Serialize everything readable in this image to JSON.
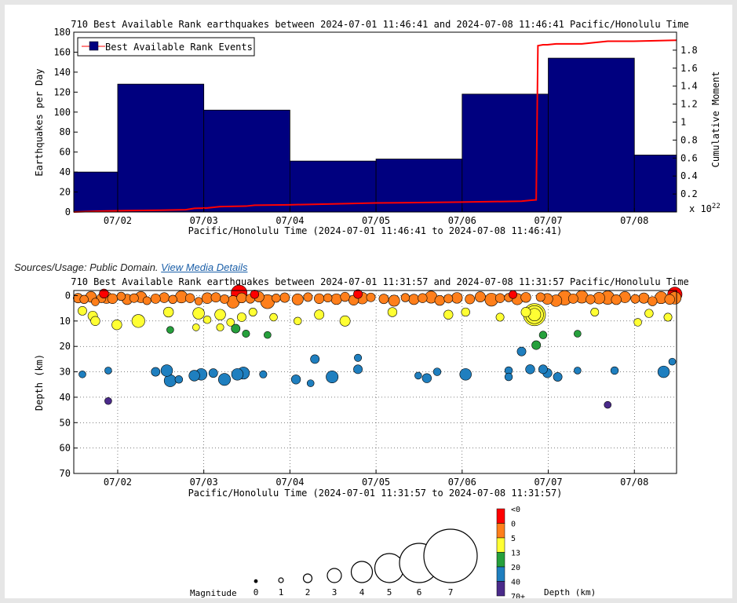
{
  "sources": {
    "label": "Sources/Usage: Public Domain.",
    "link_text": "View Media Details"
  },
  "colors": {
    "bar": "#00007f",
    "cumulative_line": "#ff0000",
    "depth_scale": [
      "#ff0000",
      "#ff7f1b",
      "#ffff33",
      "#26a03c",
      "#1f7fbf",
      "#4a2a8a",
      "#6b3fa0"
    ]
  },
  "chart_data": [
    {
      "type": "bar",
      "title": "710 Best Available Rank earthquakes between 2024-07-01 11:46:41 and 2024-07-08 11:46:41 Pacific/Honolulu Time",
      "xlabel": "Pacific/Honolulu Time (2024-07-01 11:46:41 to 2024-07-08 11:46:41)",
      "ylabel": "Earthquakes per Day",
      "y2label": "Cumulative Moment",
      "y2_multiplier": "x 10",
      "y2_exponent": "22",
      "legend": {
        "placement": "top-left",
        "entries": [
          "Best Available Rank Events"
        ]
      },
      "xlim": [
        0,
        7
      ],
      "xticks": [
        {
          "x": 0.51,
          "label": "07/02"
        },
        {
          "x": 1.51,
          "label": "07/03"
        },
        {
          "x": 2.51,
          "label": "07/04"
        },
        {
          "x": 3.51,
          "label": "07/05"
        },
        {
          "x": 4.51,
          "label": "07/06"
        },
        {
          "x": 5.51,
          "label": "07/07"
        },
        {
          "x": 6.51,
          "label": "07/08"
        }
      ],
      "ylim": [
        0,
        180
      ],
      "yticks": [
        0,
        20,
        40,
        60,
        80,
        100,
        120,
        140,
        160,
        180
      ],
      "y2lim": [
        0,
        2.0
      ],
      "y2ticks": [
        0.2,
        0.4,
        0.6,
        0.8,
        1,
        1.2,
        1.4,
        1.6,
        1.8
      ],
      "bars": [
        {
          "x0": 0.0,
          "x1": 0.51,
          "value": 40
        },
        {
          "x0": 0.51,
          "x1": 1.51,
          "value": 128
        },
        {
          "x0": 1.51,
          "x1": 2.51,
          "value": 102
        },
        {
          "x0": 2.51,
          "x1": 3.51,
          "value": 51
        },
        {
          "x0": 3.51,
          "x1": 4.51,
          "value": 53
        },
        {
          "x0": 4.51,
          "x1": 5.51,
          "value": 118
        },
        {
          "x0": 5.51,
          "x1": 6.51,
          "value": 154
        },
        {
          "x0": 6.51,
          "x1": 7.0,
          "value": 57
        }
      ],
      "cumulative_moment": {
        "x": [
          0,
          0.3,
          0.6,
          1.0,
          1.3,
          1.4,
          1.55,
          1.7,
          2.0,
          2.1,
          2.5,
          3.0,
          3.5,
          4.0,
          4.5,
          5.2,
          5.3,
          5.37,
          5.39,
          5.45,
          5.5,
          5.6,
          5.9,
          6.0,
          6.2,
          6.5,
          7.0
        ],
        "y": [
          0.0,
          0.01,
          0.015,
          0.02,
          0.025,
          0.04,
          0.045,
          0.06,
          0.065,
          0.075,
          0.08,
          0.09,
          0.1,
          0.105,
          0.11,
          0.12,
          0.13,
          0.135,
          1.85,
          1.86,
          1.86,
          1.87,
          1.87,
          1.88,
          1.9,
          1.9,
          1.91
        ]
      }
    },
    {
      "type": "scatter",
      "title": "710 Best Available Rank earthquakes between 2024-07-01 11:31:57 and 2024-07-08 11:31:57 Pacific/Honolulu Time",
      "xlabel": "Pacific/Honolulu Time (2024-07-01 11:31:57 to 2024-07-08 11:31:57)",
      "ylabel": "Depth (km)",
      "xlim": [
        0,
        7
      ],
      "xticks": [
        {
          "x": 0.51,
          "label": "07/02"
        },
        {
          "x": 1.51,
          "label": "07/03"
        },
        {
          "x": 2.51,
          "label": "07/04"
        },
        {
          "x": 3.51,
          "label": "07/05"
        },
        {
          "x": 4.51,
          "label": "07/06"
        },
        {
          "x": 5.51,
          "label": "07/07"
        },
        {
          "x": 6.51,
          "label": "07/08"
        }
      ],
      "ylim": [
        -2,
        70
      ],
      "yticks": [
        0,
        10,
        20,
        30,
        40,
        50,
        60,
        70
      ],
      "grid": true,
      "depth_classes": [
        "<0",
        "0",
        "5",
        "13",
        "20",
        "40",
        "70+"
      ],
      "depth_label": "Depth (km)",
      "magnitude_label": "Magnitude",
      "magnitude_legend": [
        "0",
        "1",
        "2",
        "3",
        "4",
        "5",
        "6",
        "7"
      ],
      "points": [
        {
          "x": 0.05,
          "d": 1,
          "m": 2.5
        },
        {
          "x": 0.12,
          "d": 1.5,
          "m": 2.2
        },
        {
          "x": 0.2,
          "d": 0.5,
          "m": 2.8
        },
        {
          "x": 0.25,
          "d": 2.5,
          "m": 2.0
        },
        {
          "x": 0.32,
          "d": 1,
          "m": 2.4
        },
        {
          "x": 0.38,
          "d": 0.8,
          "m": 3.0
        },
        {
          "x": 0.45,
          "d": 1.2,
          "m": 2.6
        },
        {
          "x": 0.55,
          "d": 0.3,
          "m": 2.2
        },
        {
          "x": 0.62,
          "d": 1.5,
          "m": 2.7
        },
        {
          "x": 0.7,
          "d": 1,
          "m": 2.3
        },
        {
          "x": 0.78,
          "d": 0.6,
          "m": 2.9
        },
        {
          "x": 0.85,
          "d": 2,
          "m": 2.1
        },
        {
          "x": 0.95,
          "d": 1.2,
          "m": 2.5
        },
        {
          "x": 1.05,
          "d": 0.8,
          "m": 2.6
        },
        {
          "x": 1.15,
          "d": 1.5,
          "m": 2.2
        },
        {
          "x": 1.25,
          "d": 0.5,
          "m": 3.1
        },
        {
          "x": 1.35,
          "d": 1,
          "m": 2.4
        },
        {
          "x": 1.45,
          "d": 2.2,
          "m": 2.0
        },
        {
          "x": 1.55,
          "d": 1,
          "m": 2.8
        },
        {
          "x": 1.65,
          "d": 0.7,
          "m": 2.5
        },
        {
          "x": 1.75,
          "d": 1.4,
          "m": 2.3
        },
        {
          "x": 1.85,
          "d": 2.5,
          "m": 3.2
        },
        {
          "x": 1.95,
          "d": 0.9,
          "m": 2.6
        },
        {
          "x": 2.05,
          "d": 1.2,
          "m": 2.4
        },
        {
          "x": 2.15,
          "d": 0.5,
          "m": 2.7
        },
        {
          "x": 2.25,
          "d": 2.4,
          "m": 3.5
        },
        {
          "x": 2.35,
          "d": 1,
          "m": 2.2
        },
        {
          "x": 2.45,
          "d": 0.8,
          "m": 2.5
        },
        {
          "x": 2.6,
          "d": 1.5,
          "m": 2.9
        },
        {
          "x": 2.72,
          "d": 0.6,
          "m": 2.3
        },
        {
          "x": 2.85,
          "d": 1.2,
          "m": 2.6
        },
        {
          "x": 2.95,
          "d": 0.9,
          "m": 2.2
        },
        {
          "x": 3.05,
          "d": 1.4,
          "m": 2.8
        },
        {
          "x": 3.15,
          "d": 0.5,
          "m": 2.4
        },
        {
          "x": 3.25,
          "d": 1.8,
          "m": 2.6
        },
        {
          "x": 3.35,
          "d": 1,
          "m": 3.0
        },
        {
          "x": 3.45,
          "d": 0.7,
          "m": 2.3
        },
        {
          "x": 3.6,
          "d": 1.3,
          "m": 2.5
        },
        {
          "x": 3.72,
          "d": 2,
          "m": 2.9
        },
        {
          "x": 3.85,
          "d": 0.8,
          "m": 2.2
        },
        {
          "x": 3.95,
          "d": 1.5,
          "m": 2.7
        },
        {
          "x": 4.05,
          "d": 1,
          "m": 2.4
        },
        {
          "x": 4.15,
          "d": 0.6,
          "m": 3.1
        },
        {
          "x": 4.25,
          "d": 1.9,
          "m": 2.6
        },
        {
          "x": 4.35,
          "d": 1.2,
          "m": 2.3
        },
        {
          "x": 4.45,
          "d": 0.9,
          "m": 2.8
        },
        {
          "x": 4.6,
          "d": 1.4,
          "m": 2.5
        },
        {
          "x": 4.72,
          "d": 0.5,
          "m": 2.7
        },
        {
          "x": 4.85,
          "d": 1.6,
          "m": 3.3
        },
        {
          "x": 4.95,
          "d": 1,
          "m": 2.4
        },
        {
          "x": 5.05,
          "d": 0.8,
          "m": 2.2
        },
        {
          "x": 5.15,
          "d": 1.4,
          "m": 2.9
        },
        {
          "x": 5.25,
          "d": 0.7,
          "m": 2.6
        },
        {
          "x": 5.42,
          "d": 0.6,
          "m": 2.3
        },
        {
          "x": 5.5,
          "d": 1.3,
          "m": 2.8
        },
        {
          "x": 5.6,
          "d": 2,
          "m": 3.0
        },
        {
          "x": 5.7,
          "d": 0.9,
          "m": 3.6
        },
        {
          "x": 5.8,
          "d": 1.2,
          "m": 2.5
        },
        {
          "x": 5.9,
          "d": 0.5,
          "m": 3.2
        },
        {
          "x": 6.0,
          "d": 1.5,
          "m": 2.4
        },
        {
          "x": 6.1,
          "d": 1,
          "m": 3.0
        },
        {
          "x": 6.2,
          "d": 0.8,
          "m": 3.4
        },
        {
          "x": 6.3,
          "d": 1.6,
          "m": 2.6
        },
        {
          "x": 6.4,
          "d": 0.6,
          "m": 2.9
        },
        {
          "x": 6.52,
          "d": 1.3,
          "m": 2.3
        },
        {
          "x": 6.62,
          "d": 1,
          "m": 2.7
        },
        {
          "x": 6.72,
          "d": 2.2,
          "m": 2.4
        },
        {
          "x": 6.82,
          "d": 0.8,
          "m": 3.1
        },
        {
          "x": 6.92,
          "d": 1.5,
          "m": 2.6
        },
        {
          "x": 6.98,
          "d": 0.9,
          "m": 3.2
        },
        {
          "x": 1.92,
          "d": -1,
          "m": 3.9
        },
        {
          "x": 6.98,
          "d": -0.5,
          "m": 3.6
        },
        {
          "x": 0.35,
          "d": -0.8,
          "m": 2.4
        },
        {
          "x": 2.1,
          "d": -0.5,
          "m": 2.2
        },
        {
          "x": 3.3,
          "d": -0.6,
          "m": 2.3
        },
        {
          "x": 5.1,
          "d": -0.4,
          "m": 2.1
        },
        {
          "x": 0.1,
          "d": 6,
          "m": 2.3
        },
        {
          "x": 0.22,
          "d": 8,
          "m": 2.5
        },
        {
          "x": 0.25,
          "d": 10,
          "m": 2.4
        },
        {
          "x": 0.5,
          "d": 11.5,
          "m": 2.6
        },
        {
          "x": 0.75,
          "d": 10,
          "m": 3.3
        },
        {
          "x": 1.1,
          "d": 6.5,
          "m": 2.6
        },
        {
          "x": 1.45,
          "d": 7,
          "m": 3.0
        },
        {
          "x": 1.55,
          "d": 9.5,
          "m": 2.0
        },
        {
          "x": 1.7,
          "d": 7.5,
          "m": 2.8
        },
        {
          "x": 1.82,
          "d": 10.5,
          "m": 2.0
        },
        {
          "x": 1.95,
          "d": 8.5,
          "m": 2.3
        },
        {
          "x": 2.08,
          "d": 6.5,
          "m": 2.1
        },
        {
          "x": 2.32,
          "d": 8.5,
          "m": 2.0
        },
        {
          "x": 2.6,
          "d": 10,
          "m": 2.0
        },
        {
          "x": 2.85,
          "d": 7.5,
          "m": 2.5
        },
        {
          "x": 3.15,
          "d": 10,
          "m": 2.7
        },
        {
          "x": 3.7,
          "d": 6.5,
          "m": 2.4
        },
        {
          "x": 4.35,
          "d": 7.5,
          "m": 2.4
        },
        {
          "x": 4.55,
          "d": 6.5,
          "m": 2.2
        },
        {
          "x": 4.95,
          "d": 8.5,
          "m": 2.1
        },
        {
          "x": 5.25,
          "d": 6.5,
          "m": 2.5
        },
        {
          "x": 5.35,
          "d": 7.5,
          "m": 5.0
        },
        {
          "x": 5.35,
          "d": 7.5,
          "m": 4.3
        },
        {
          "x": 5.35,
          "d": 7.5,
          "m": 3.2
        },
        {
          "x": 6.05,
          "d": 6.5,
          "m": 2.1
        },
        {
          "x": 6.68,
          "d": 7,
          "m": 2.2
        },
        {
          "x": 6.9,
          "d": 8.5,
          "m": 2.1
        },
        {
          "x": 6.55,
          "d": 10.5,
          "m": 2.0
        },
        {
          "x": 1.12,
          "d": 13.5,
          "m": 1.8
        },
        {
          "x": 1.42,
          "d": 12.5,
          "m": 1.8
        },
        {
          "x": 1.7,
          "d": 12.5,
          "m": 1.9
        },
        {
          "x": 1.88,
          "d": 13,
          "m": 2.3
        },
        {
          "x": 2.0,
          "d": 15,
          "m": 1.9
        },
        {
          "x": 2.25,
          "d": 15.5,
          "m": 1.8
        },
        {
          "x": 5.37,
          "d": 19.5,
          "m": 2.3
        },
        {
          "x": 0.1,
          "d": 31,
          "m": 1.8
        },
        {
          "x": 0.4,
          "d": 29.5,
          "m": 1.8
        },
        {
          "x": 0.95,
          "d": 30,
          "m": 2.3
        },
        {
          "x": 1.08,
          "d": 29.5,
          "m": 3.0
        },
        {
          "x": 1.12,
          "d": 33.5,
          "m": 3.1
        },
        {
          "x": 1.22,
          "d": 33,
          "m": 2.0
        },
        {
          "x": 1.4,
          "d": 31.5,
          "m": 2.8
        },
        {
          "x": 1.48,
          "d": 31,
          "m": 3.0
        },
        {
          "x": 1.62,
          "d": 30.5,
          "m": 2.3
        },
        {
          "x": 1.75,
          "d": 33,
          "m": 3.1
        },
        {
          "x": 1.9,
          "d": 31,
          "m": 3.0
        },
        {
          "x": 1.97,
          "d": 30.5,
          "m": 3.1
        },
        {
          "x": 2.2,
          "d": 31,
          "m": 1.9
        },
        {
          "x": 2.58,
          "d": 33,
          "m": 2.4
        },
        {
          "x": 2.75,
          "d": 34.5,
          "m": 1.8
        },
        {
          "x": 2.8,
          "d": 25,
          "m": 2.3
        },
        {
          "x": 3.0,
          "d": 32,
          "m": 3.1
        },
        {
          "x": 3.3,
          "d": 24.5,
          "m": 1.9
        },
        {
          "x": 3.3,
          "d": 29,
          "m": 2.3
        },
        {
          "x": 4.0,
          "d": 31.5,
          "m": 1.8
        },
        {
          "x": 4.1,
          "d": 32.5,
          "m": 2.4
        },
        {
          "x": 4.22,
          "d": 30,
          "m": 2.0
        },
        {
          "x": 4.55,
          "d": 31,
          "m": 3.0
        },
        {
          "x": 5.05,
          "d": 29.5,
          "m": 2.0
        },
        {
          "x": 5.05,
          "d": 32,
          "m": 2.0
        },
        {
          "x": 5.2,
          "d": 22,
          "m": 2.3
        },
        {
          "x": 5.3,
          "d": 29,
          "m": 2.4
        },
        {
          "x": 5.45,
          "d": 29,
          "m": 2.3
        },
        {
          "x": 5.5,
          "d": 30.5,
          "m": 2.4
        },
        {
          "x": 5.62,
          "d": 32,
          "m": 2.3
        },
        {
          "x": 5.85,
          "d": 29.5,
          "m": 1.8
        },
        {
          "x": 6.28,
          "d": 29.5,
          "m": 2.0
        },
        {
          "x": 6.85,
          "d": 30,
          "m": 3.0
        },
        {
          "x": 6.95,
          "d": 26,
          "m": 1.8
        },
        {
          "x": 5.85,
          "d": 15,
          "m": 1.8
        },
        {
          "x": 5.45,
          "d": 15.5,
          "m": 2.0
        },
        {
          "x": 0.4,
          "d": 41.5,
          "m": 1.8
        },
        {
          "x": 6.2,
          "d": 43,
          "m": 1.8
        }
      ]
    }
  ]
}
